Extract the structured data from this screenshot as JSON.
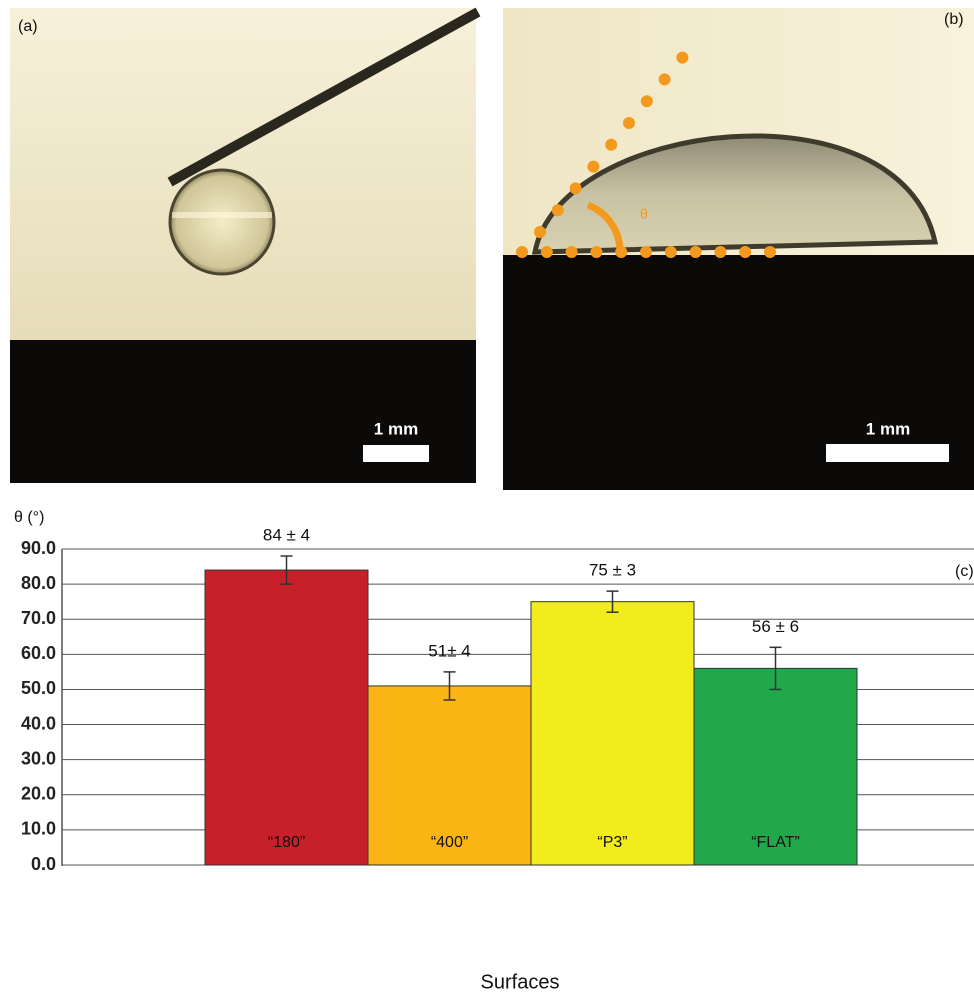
{
  "panels": {
    "a": {
      "label": "(a)",
      "scale_bar": "1 mm"
    },
    "b": {
      "label": "(b)",
      "scale_bar": "1 mm",
      "angle_symbol": "θ"
    }
  },
  "chart_data": {
    "type": "bar",
    "panel_label": "(c)",
    "y_label": "θ (°)",
    "x_label": "Surfaces",
    "categories": [
      "“180”",
      "“400”",
      "“P3”",
      "“FLAT”"
    ],
    "values": [
      84,
      51,
      75,
      56
    ],
    "errors": [
      4,
      4,
      3,
      6
    ],
    "value_labels": [
      "84 ± 4",
      "51± 4",
      "75 ± 3",
      "56 ± 6"
    ],
    "colors": [
      "#c8202a",
      "#fbb515",
      "#f2ec1c",
      "#21a84a"
    ],
    "ylim": [
      0,
      90
    ],
    "yticks": [
      {
        "value": 0,
        "label": "0.0"
      },
      {
        "value": 10,
        "label": "10.0"
      },
      {
        "value": 20,
        "label": "20.0"
      },
      {
        "value": 30,
        "label": "30.0"
      },
      {
        "value": 40,
        "label": "40.0"
      },
      {
        "value": 50,
        "label": "50.0"
      },
      {
        "value": 60,
        "label": "60.0"
      },
      {
        "value": 70,
        "label": "70.0"
      },
      {
        "value": 80,
        "label": "80.0"
      },
      {
        "value": 90,
        "label": "90.0"
      }
    ],
    "grid": true
  }
}
